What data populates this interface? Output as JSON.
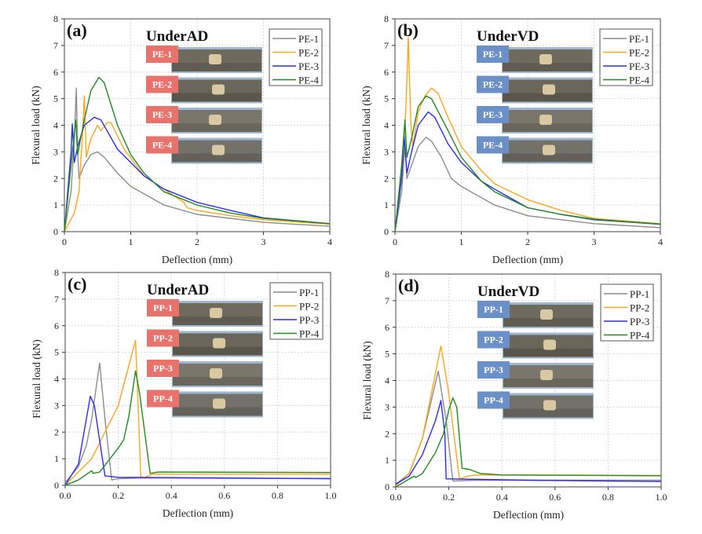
{
  "chart_data": [
    {
      "panel_label": "(a)",
      "type": "line",
      "annotation": "UnderAD",
      "xlabel": "Deflection (mm)",
      "ylabel": "Flexural load (kN)",
      "xlim": [
        0,
        4
      ],
      "ylim": [
        0,
        8
      ],
      "xticks": [
        "0",
        "1",
        "2",
        "3",
        "4"
      ],
      "yticks": [
        "0",
        "1",
        "2",
        "3",
        "4",
        "5",
        "6",
        "7",
        "8"
      ],
      "grid": true,
      "legend": "top-right",
      "inset_label_color": "#E8736C",
      "inset_labels": [
        "PE-1",
        "PE-2",
        "PE-3",
        "PE-4"
      ],
      "series": [
        {
          "name": "PE-1",
          "color": "#8C8C8C",
          "x": [
            0,
            0.1,
            0.15,
            0.18,
            0.2,
            0.22,
            0.3,
            0.4,
            0.5,
            0.6,
            0.8,
            1,
            1.5,
            2,
            3,
            4
          ],
          "y": [
            0,
            1.5,
            3.5,
            5.4,
            3,
            2,
            2.5,
            2.9,
            3.0,
            2.8,
            2.2,
            1.7,
            1.0,
            0.65,
            0.35,
            0.2
          ]
        },
        {
          "name": "PE-2",
          "color": "#FFA61A",
          "x": [
            0,
            0.15,
            0.22,
            0.27,
            0.3,
            0.33,
            0.4,
            0.5,
            0.55,
            0.65,
            0.7,
            0.9,
            1.2,
            1.5,
            1.8,
            1.85,
            2,
            2.5,
            3,
            4
          ],
          "y": [
            0,
            0.7,
            1.5,
            3.5,
            5.1,
            2.8,
            3.5,
            4.0,
            3.8,
            4.1,
            4.1,
            3.1,
            2.1,
            1.6,
            1.1,
            0.9,
            0.8,
            0.6,
            0.45,
            0.28
          ]
        },
        {
          "name": "PE-3",
          "color": "#2B2BF5",
          "x": [
            0,
            0.1,
            0.12,
            0.15,
            0.2,
            0.3,
            0.45,
            0.55,
            0.8,
            1.0,
            1.2,
            1.5,
            2,
            2.5,
            3,
            4
          ],
          "y": [
            0,
            3.0,
            4.05,
            2.6,
            3.2,
            4.0,
            4.3,
            4.2,
            3.1,
            2.6,
            2.1,
            1.6,
            1.1,
            0.8,
            0.52,
            0.3
          ]
        },
        {
          "name": "PE-4",
          "color": "#1E8C1E",
          "x": [
            0,
            0.1,
            0.17,
            0.2,
            0.3,
            0.4,
            0.52,
            0.6,
            0.8,
            1.0,
            1.2,
            1.5,
            2,
            2.5,
            3,
            4
          ],
          "y": [
            0,
            2.5,
            4.2,
            2.9,
            4.2,
            5.3,
            5.8,
            5.6,
            4.0,
            2.9,
            2.2,
            1.5,
            1.0,
            0.7,
            0.5,
            0.3
          ]
        }
      ]
    },
    {
      "panel_label": "(b)",
      "type": "line",
      "annotation": "UnderVD",
      "xlabel": "Deflection (mm)",
      "ylabel": "Flexural load (kN)",
      "xlim": [
        0,
        4
      ],
      "ylim": [
        0,
        8
      ],
      "xticks": [
        "0",
        "1",
        "2",
        "3",
        "4"
      ],
      "yticks": [
        "0",
        "1",
        "2",
        "3",
        "4",
        "5",
        "6",
        "7",
        "8"
      ],
      "grid": true,
      "legend": "top-right",
      "inset_label_color": "#6B8FC7",
      "inset_labels": [
        "PE-1",
        "PE-2",
        "PE-3",
        "PE-4"
      ],
      "series": [
        {
          "name": "PE-1",
          "color": "#8C8C8C",
          "x": [
            0,
            0.1,
            0.15,
            0.18,
            0.25,
            0.35,
            0.47,
            0.55,
            0.7,
            0.85,
            1,
            1.5,
            2,
            3,
            4
          ],
          "y": [
            0,
            1.5,
            3.2,
            2.0,
            2.5,
            3.2,
            3.55,
            3.4,
            2.8,
            2.0,
            1.7,
            1.0,
            0.6,
            0.3,
            0.15
          ]
        },
        {
          "name": "PE-2",
          "color": "#FFA61A",
          "x": [
            0,
            0.12,
            0.17,
            0.2,
            0.24,
            0.27,
            0.35,
            0.45,
            0.55,
            0.65,
            0.8,
            1,
            1.3,
            1.5,
            2,
            2.5,
            3,
            4
          ],
          "y": [
            0,
            2.5,
            5,
            7.3,
            4.0,
            3.2,
            4.5,
            5.1,
            5.4,
            5.2,
            4.3,
            3.2,
            2.3,
            1.8,
            1.2,
            0.8,
            0.5,
            0.3
          ]
        },
        {
          "name": "PE-3",
          "color": "#2B2BF5",
          "x": [
            0,
            0.1,
            0.14,
            0.18,
            0.25,
            0.35,
            0.5,
            0.6,
            0.8,
            1,
            1.3,
            1.5,
            2,
            2.5,
            3,
            4
          ],
          "y": [
            0,
            2.0,
            3.6,
            2.2,
            3.0,
            4.0,
            4.5,
            4.3,
            3.3,
            2.6,
            1.9,
            1.6,
            0.9,
            0.65,
            0.45,
            0.28
          ]
        },
        {
          "name": "PE-4",
          "color": "#1E8C1E",
          "x": [
            0,
            0.1,
            0.15,
            0.18,
            0.25,
            0.35,
            0.47,
            0.55,
            0.8,
            1,
            1.3,
            1.5,
            2,
            2.5,
            3,
            4
          ],
          "y": [
            0,
            2.5,
            4.2,
            2.8,
            3.5,
            4.7,
            5.1,
            5.0,
            3.8,
            2.8,
            1.9,
            1.5,
            0.9,
            0.65,
            0.47,
            0.28
          ]
        }
      ]
    },
    {
      "panel_label": "(c)",
      "type": "line",
      "annotation": "UnderAD",
      "xlabel": "Deflection (mm)",
      "ylabel": "Flexural load (kN)",
      "xlim": [
        0,
        1.0
      ],
      "ylim": [
        0,
        8
      ],
      "xticks": [
        "0.0",
        "0.2",
        "0.4",
        "0.6",
        "0.8",
        "1.0"
      ],
      "yticks": [
        "0",
        "1",
        "2",
        "3",
        "4",
        "5",
        "6",
        "7",
        "8"
      ],
      "grid": true,
      "legend": "top-right",
      "inset_label_color": "#E8736C",
      "inset_labels": [
        "PP-1",
        "PP-2",
        "PP-3",
        "PP-4"
      ],
      "series": [
        {
          "name": "PP-1",
          "color": "#8C8C8C",
          "x": [
            0,
            0.05,
            0.08,
            0.1,
            0.13,
            0.15,
            0.175,
            0.2,
            0.3,
            1
          ],
          "y": [
            0.1,
            0.7,
            1.5,
            2.5,
            4.6,
            2.5,
            0.2,
            0.25,
            0.28,
            0.25
          ]
        },
        {
          "name": "PP-2",
          "color": "#FFA61A",
          "x": [
            0,
            0.1,
            0.2,
            0.265,
            0.275,
            0.285,
            0.3,
            0.33,
            1
          ],
          "y": [
            0,
            1.0,
            3.0,
            5.45,
            3,
            0.3,
            0.3,
            0.42,
            0.42
          ]
        },
        {
          "name": "PP-3",
          "color": "#2B2BF5",
          "x": [
            0,
            0.05,
            0.08,
            0.095,
            0.11,
            0.15,
            0.2,
            0.5,
            1
          ],
          "y": [
            0,
            0.8,
            2.5,
            3.35,
            3.0,
            0.35,
            0.3,
            0.28,
            0.25
          ]
        },
        {
          "name": "PP-4",
          "color": "#1E8C1E",
          "x": [
            0,
            0.05,
            0.1,
            0.105,
            0.13,
            0.2,
            0.22,
            0.24,
            0.265,
            0.28,
            0.32,
            0.35,
            1
          ],
          "y": [
            0,
            0.2,
            0.55,
            0.45,
            0.5,
            1.4,
            1.7,
            2.6,
            4.3,
            3.5,
            0.45,
            0.5,
            0.48
          ]
        }
      ]
    },
    {
      "panel_label": "(d)",
      "type": "line",
      "annotation": "UnderVD",
      "xlabel": "Deflection (mm)",
      "ylabel": "Flexural load (kN)",
      "xlim": [
        0,
        1.0
      ],
      "ylim": [
        0,
        8
      ],
      "xticks": [
        "0.0",
        "0.2",
        "0.4",
        "0.6",
        "0.8",
        "1.0"
      ],
      "yticks": [
        "0",
        "1",
        "2",
        "3",
        "4",
        "5",
        "6",
        "7",
        "8"
      ],
      "grid": true,
      "legend": "top-right",
      "inset_label_color": "#6B8FC7",
      "inset_labels": [
        "PP-1",
        "PP-2",
        "PP-3",
        "PP-4"
      ],
      "series": [
        {
          "name": "PP-1",
          "color": "#8C8C8C",
          "x": [
            0,
            0.05,
            0.1,
            0.16,
            0.19,
            0.215,
            0.3,
            1
          ],
          "y": [
            0.1,
            0.5,
            1.8,
            4.35,
            2.5,
            0.22,
            0.25,
            0.25
          ]
        },
        {
          "name": "PP-2",
          "color": "#FFA61A",
          "x": [
            0,
            0.05,
            0.1,
            0.17,
            0.2,
            0.24,
            0.27,
            0.3,
            1
          ],
          "y": [
            0.05,
            0.5,
            1.8,
            5.3,
            3.5,
            0.3,
            0.4,
            0.45,
            0.43
          ]
        },
        {
          "name": "PP-3",
          "color": "#2B2BF5",
          "x": [
            0,
            0.05,
            0.1,
            0.15,
            0.17,
            0.185,
            0.19,
            0.2,
            0.5,
            1
          ],
          "y": [
            0.1,
            0.4,
            1.2,
            2.5,
            3.25,
            2.0,
            0.3,
            0.3,
            0.25,
            0.2
          ]
        },
        {
          "name": "PP-4",
          "color": "#1E8C1E",
          "x": [
            0,
            0.06,
            0.07,
            0.075,
            0.1,
            0.15,
            0.18,
            0.2,
            0.215,
            0.23,
            0.25,
            0.28,
            0.32,
            0.4,
            1
          ],
          "y": [
            0,
            0.35,
            0.4,
            0.35,
            0.5,
            1.3,
            2.0,
            2.9,
            3.35,
            3.0,
            0.7,
            0.65,
            0.5,
            0.45,
            0.42
          ]
        }
      ]
    }
  ]
}
